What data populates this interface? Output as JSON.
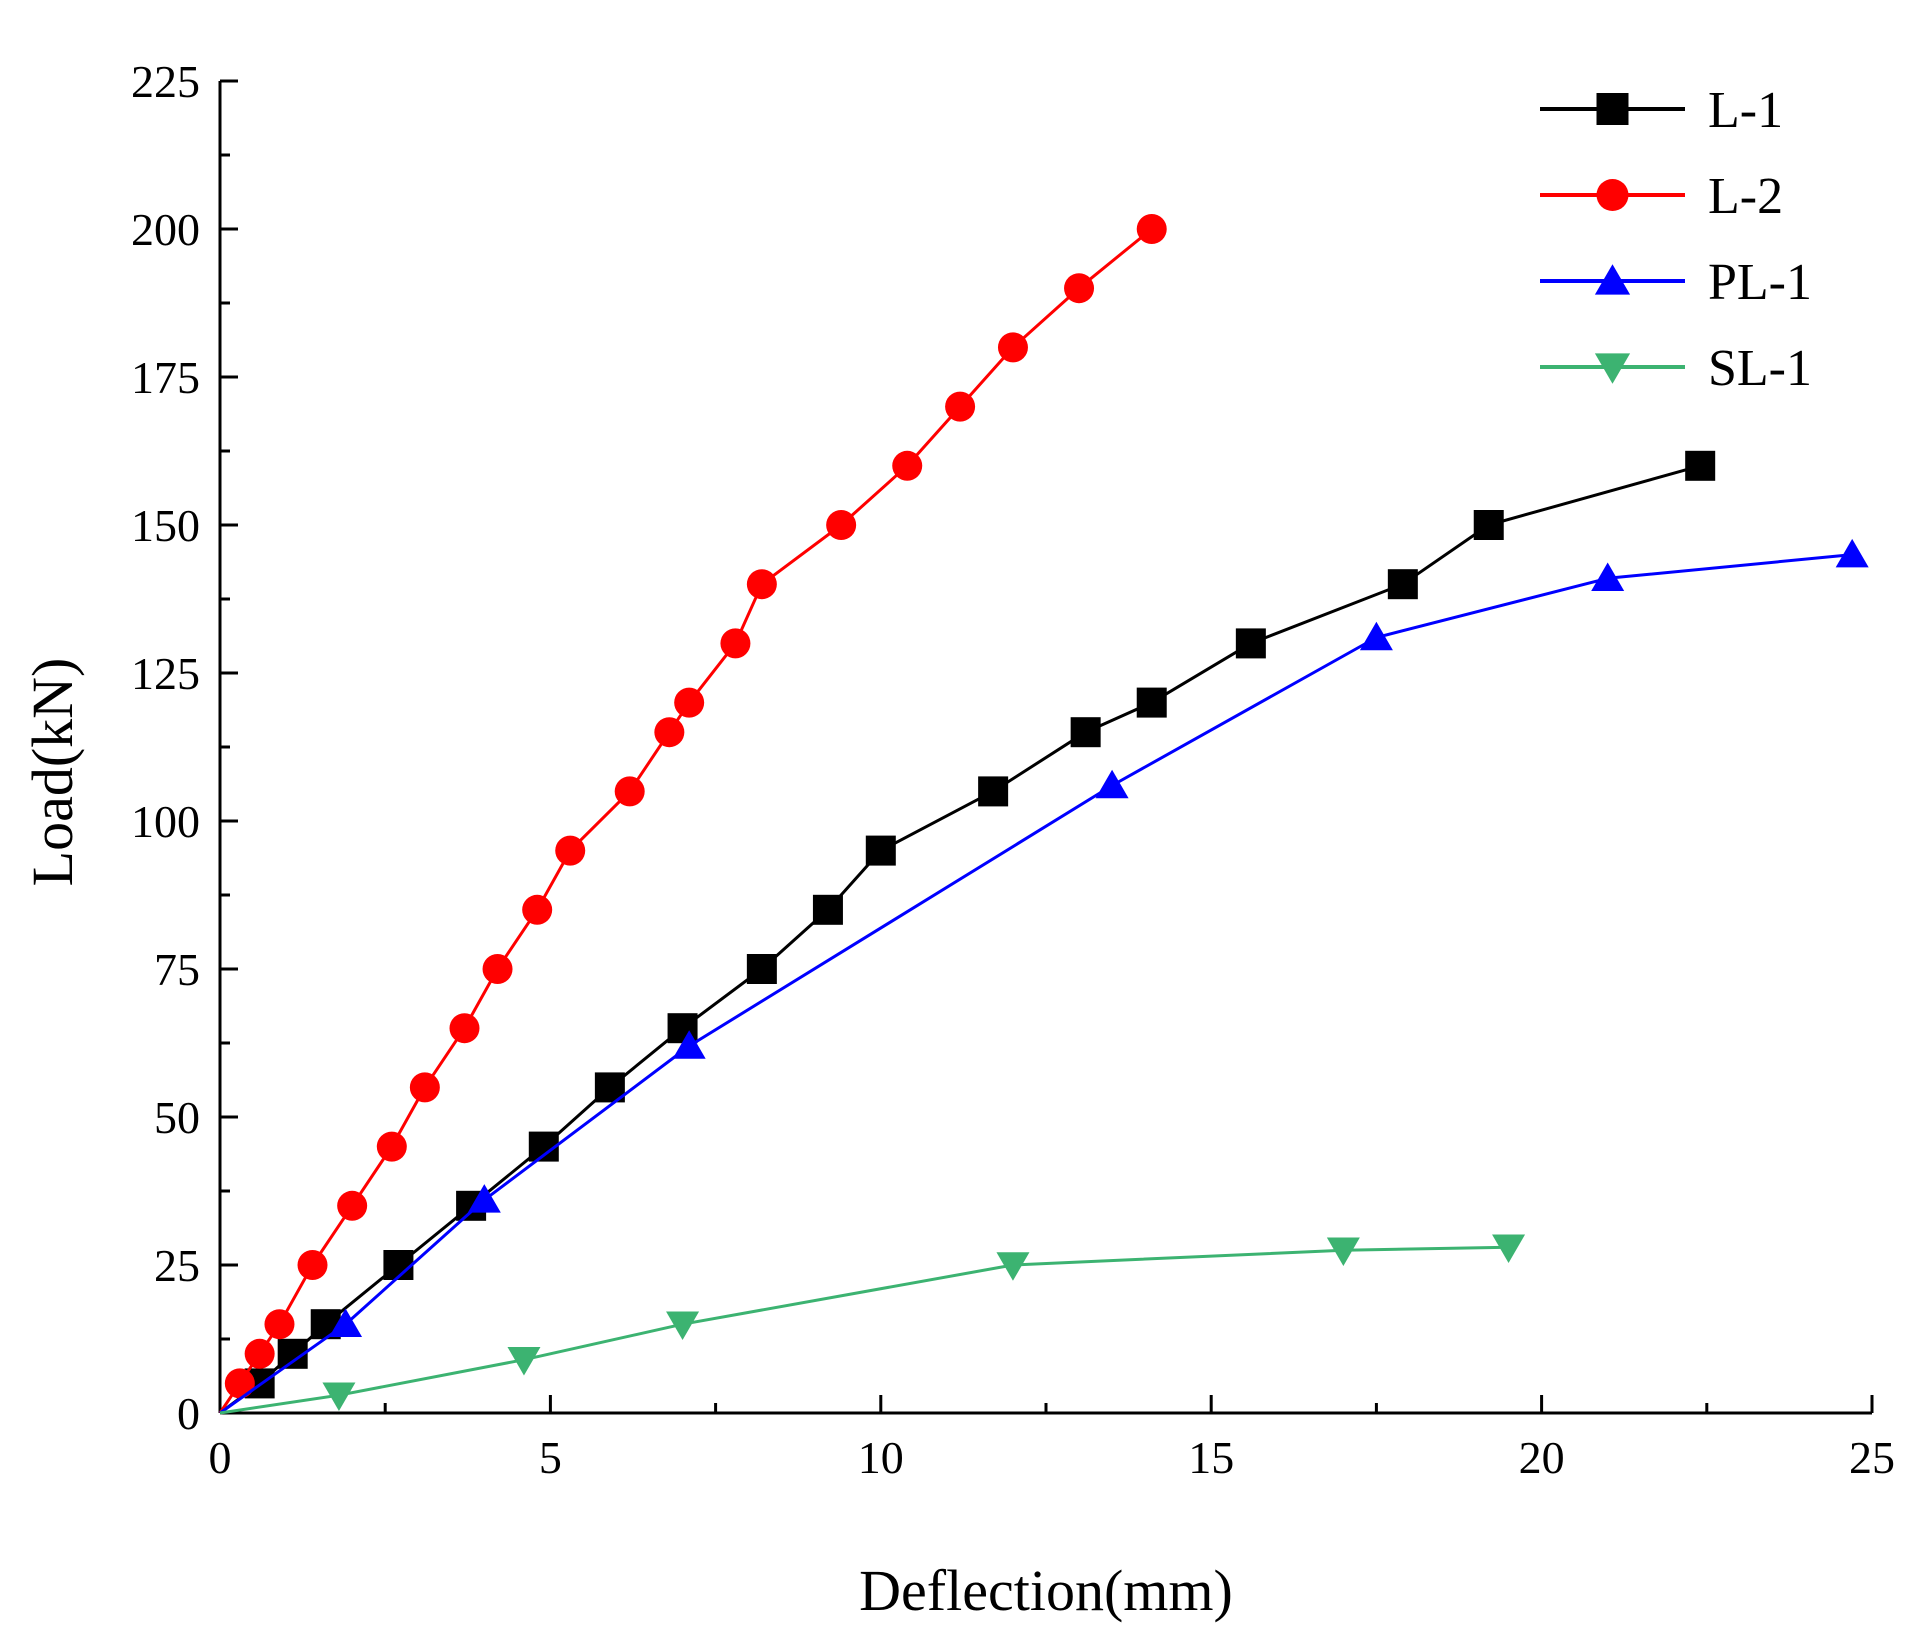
{
  "chart_data": {
    "type": "line",
    "title": "",
    "xlabel": "Deflection(mm)",
    "ylabel": "Load(kN)",
    "xlim": [
      0,
      25
    ],
    "ylim": [
      0,
      225
    ],
    "xticks": [
      0,
      5,
      10,
      15,
      20,
      25
    ],
    "yticks": [
      0,
      25,
      50,
      75,
      100,
      125,
      150,
      175,
      200,
      225
    ],
    "xtick_labels": [
      "0",
      "5",
      "10",
      "15",
      "20",
      "25"
    ],
    "ytick_labels": [
      "0",
      "25",
      "50",
      "75",
      "100",
      "125",
      "150",
      "175",
      "200",
      "225"
    ],
    "grid": false,
    "legend_position": "top-right",
    "series": [
      {
        "name": "L-1",
        "color": "#000000",
        "marker": "square",
        "points": [
          [
            0,
            0
          ],
          [
            0.6,
            5
          ],
          [
            1.1,
            10
          ],
          [
            1.6,
            15
          ],
          [
            2.7,
            25
          ],
          [
            3.8,
            35
          ],
          [
            4.9,
            45
          ],
          [
            5.9,
            55
          ],
          [
            7.0,
            65
          ],
          [
            8.2,
            75
          ],
          [
            9.2,
            85
          ],
          [
            10.0,
            95
          ],
          [
            11.7,
            105
          ],
          [
            13.1,
            115
          ],
          [
            14.1,
            120
          ],
          [
            15.6,
            130
          ],
          [
            17.9,
            140
          ],
          [
            19.2,
            150
          ],
          [
            22.4,
            160
          ]
        ]
      },
      {
        "name": "L-2",
        "color": "#ff0000",
        "marker": "circle",
        "points": [
          [
            0,
            0
          ],
          [
            0.3,
            5
          ],
          [
            0.6,
            10
          ],
          [
            0.9,
            15
          ],
          [
            1.4,
            25
          ],
          [
            2.0,
            35
          ],
          [
            2.6,
            45
          ],
          [
            3.1,
            55
          ],
          [
            3.7,
            65
          ],
          [
            4.2,
            75
          ],
          [
            4.8,
            85
          ],
          [
            5.3,
            95
          ],
          [
            6.2,
            105
          ],
          [
            6.8,
            115
          ],
          [
            7.1,
            120
          ],
          [
            7.8,
            130
          ],
          [
            8.2,
            140
          ],
          [
            9.4,
            150
          ],
          [
            10.4,
            160
          ],
          [
            11.2,
            170
          ],
          [
            12.0,
            180
          ],
          [
            13.0,
            190
          ],
          [
            14.1,
            200
          ]
        ]
      },
      {
        "name": "PL-1",
        "color": "#0000ff",
        "marker": "triangle-up",
        "points": [
          [
            0,
            0
          ],
          [
            1.9,
            15
          ],
          [
            4.0,
            36
          ],
          [
            7.1,
            62
          ],
          [
            13.5,
            106
          ],
          [
            17.5,
            131
          ],
          [
            21.0,
            141
          ],
          [
            24.7,
            145
          ]
        ]
      },
      {
        "name": "SL-1",
        "color": "#3cb371",
        "marker": "triangle-down",
        "points": [
          [
            0,
            0
          ],
          [
            1.8,
            3
          ],
          [
            4.6,
            9
          ],
          [
            7.0,
            15
          ],
          [
            12.0,
            25
          ],
          [
            17.0,
            27.5
          ],
          [
            19.5,
            28
          ]
        ]
      }
    ]
  }
}
